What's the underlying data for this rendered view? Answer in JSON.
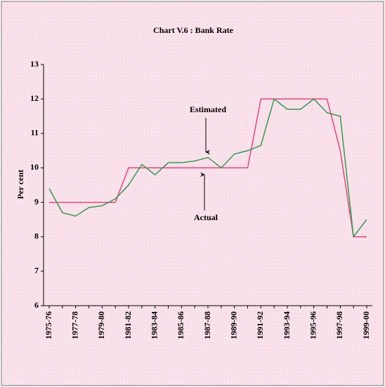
{
  "chart_data": {
    "type": "line",
    "title": "Chart V.6 : Bank Rate",
    "y_label": "Per cent",
    "categories": [
      "1975-76",
      null,
      "1977-78",
      null,
      "1979-80",
      null,
      "1981-82",
      null,
      "1983-84",
      null,
      "1985-86",
      null,
      "1987-88",
      null,
      "1989-90",
      null,
      "1991-92",
      null,
      "1993-94",
      null,
      "1995-96",
      null,
      "1997-98",
      null,
      "1999-00"
    ],
    "series": [
      {
        "name": "Actual",
        "color": "#e8457a",
        "values": [
          9,
          9,
          9,
          9,
          9,
          9,
          10,
          10,
          10,
          10,
          10,
          10,
          10,
          10,
          10,
          10,
          12,
          12,
          12,
          12,
          12,
          12,
          10.5,
          8,
          8
        ]
      },
      {
        "name": "Estimated",
        "color": "#2e9e4a",
        "values": [
          9.4,
          8.7,
          8.6,
          8.85,
          8.9,
          9.1,
          9.5,
          10.1,
          9.8,
          10.15,
          10.15,
          10.2,
          10.3,
          10.0,
          10.4,
          10.5,
          10.65,
          12.0,
          11.7,
          11.7,
          12.0,
          11.6,
          11.5,
          8.0,
          8.5
        ]
      }
    ],
    "ylim": [
      6,
      13
    ],
    "yticks": [
      6,
      7,
      8,
      9,
      10,
      11,
      12,
      13
    ]
  }
}
